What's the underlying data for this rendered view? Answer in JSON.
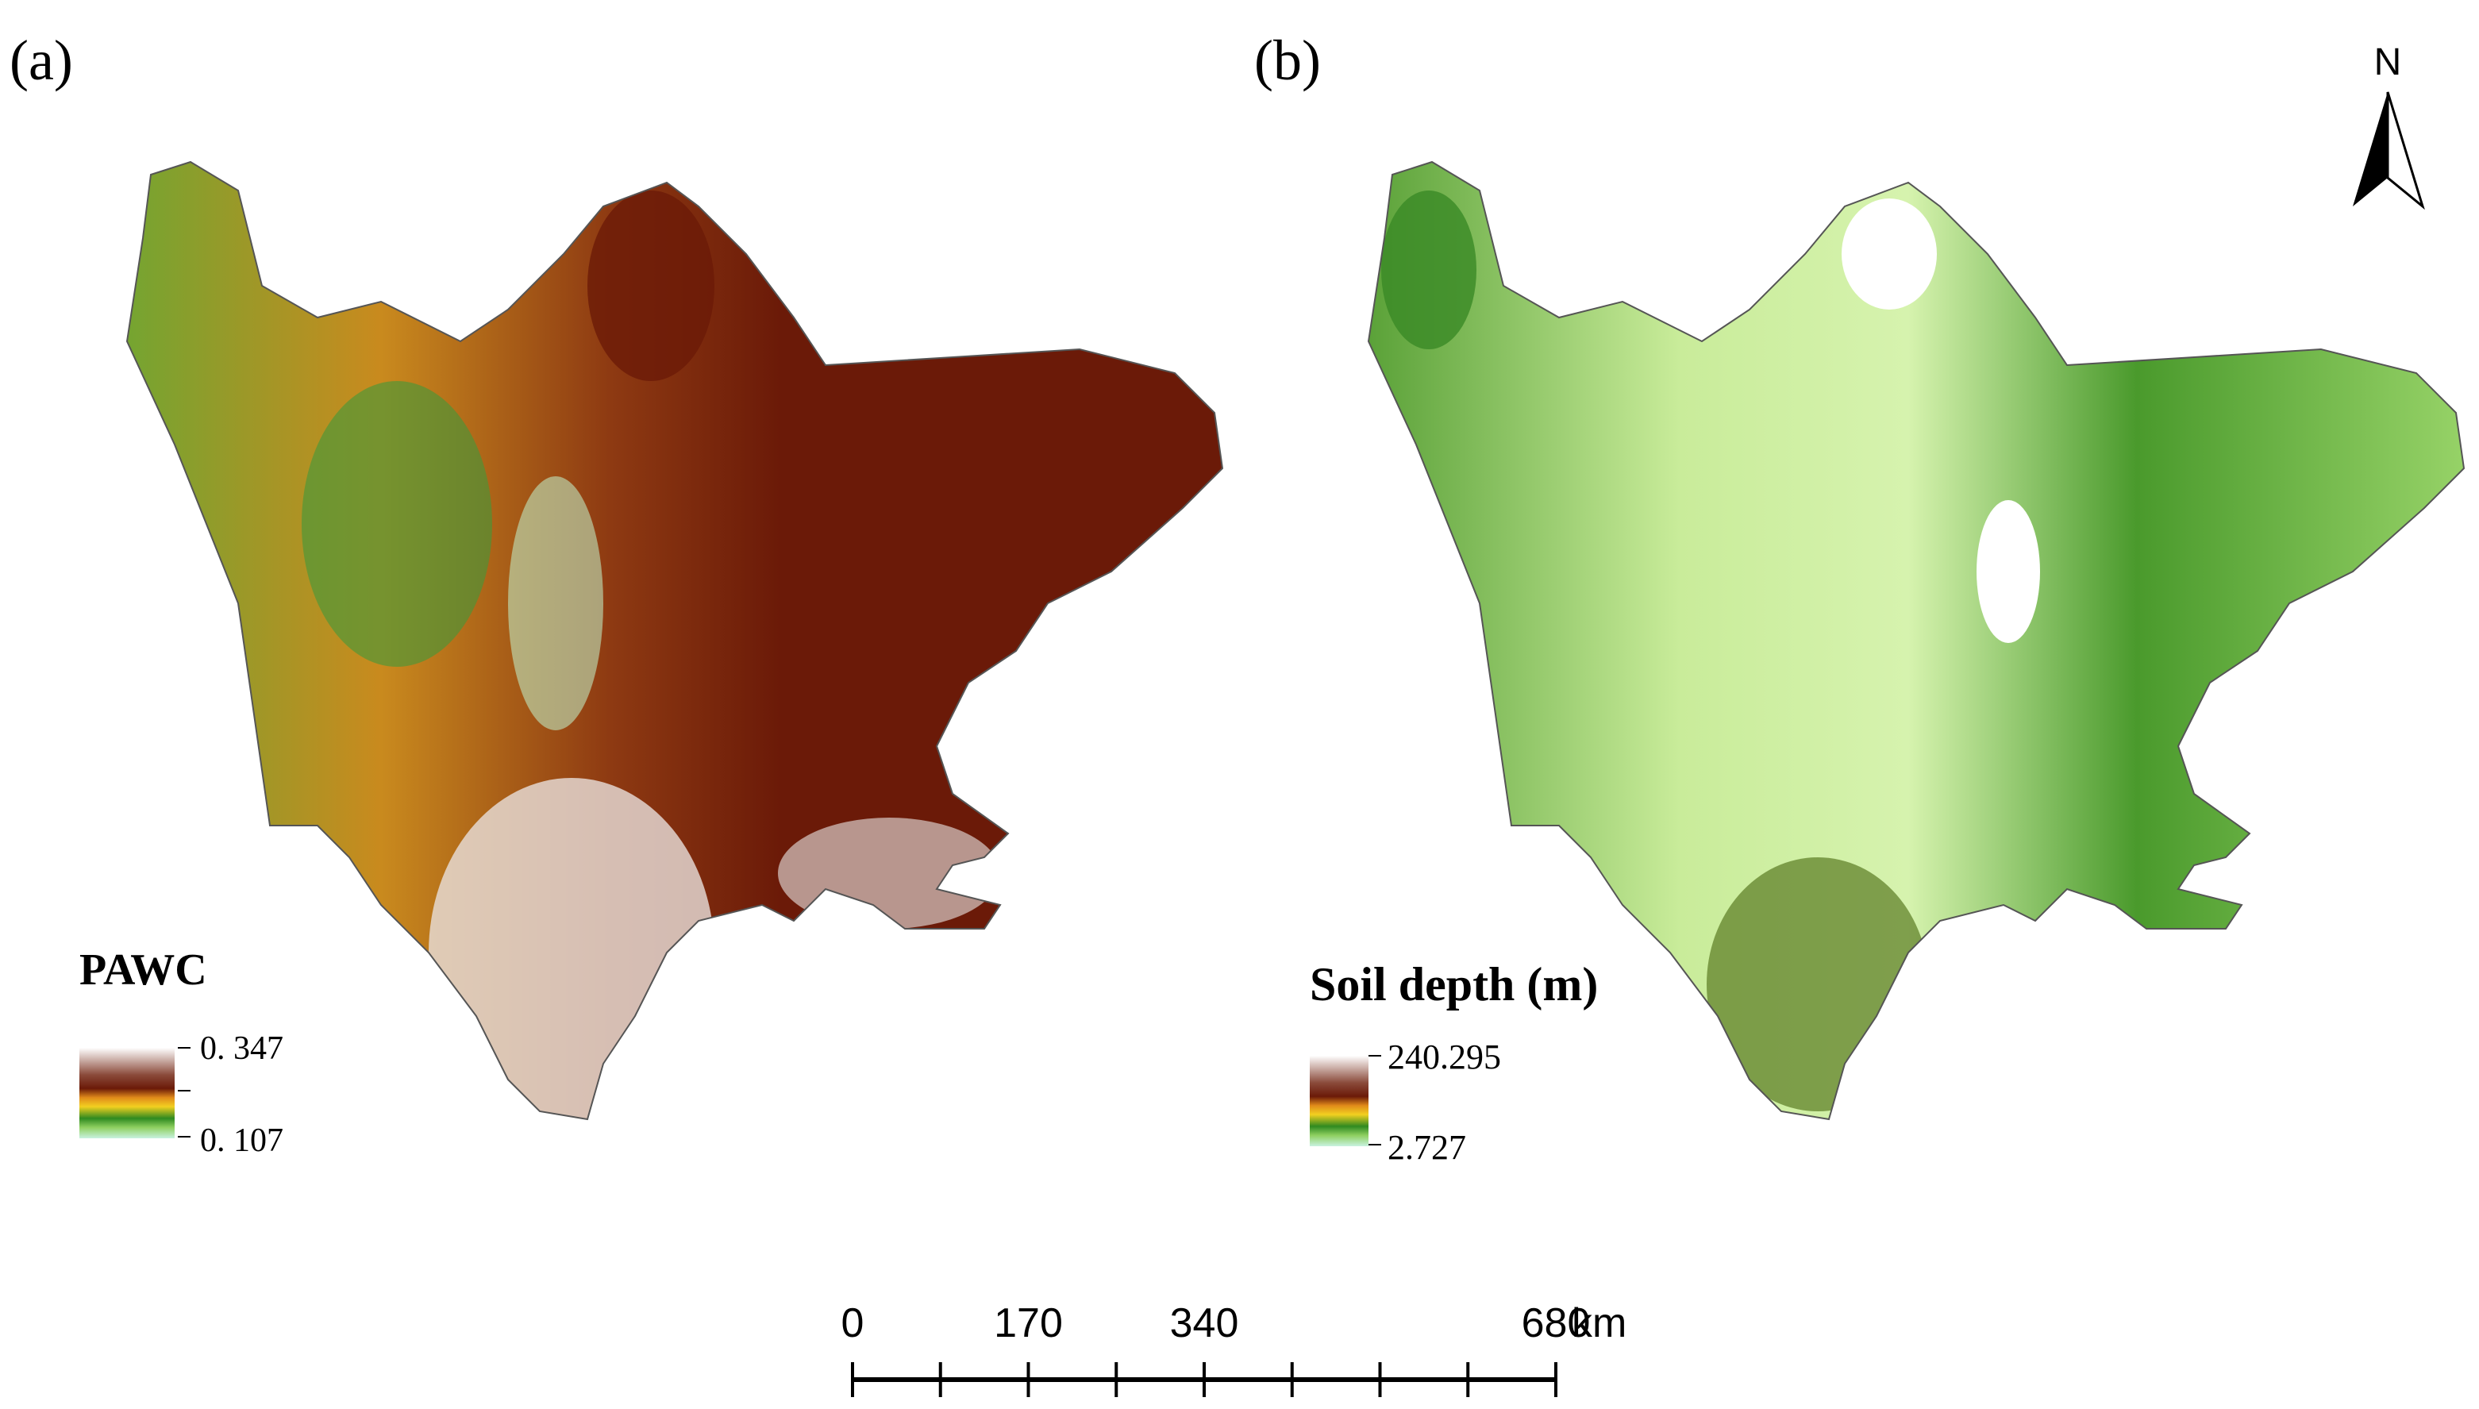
{
  "panels": [
    {
      "label": "(a)",
      "legend": {
        "title": "PAWC",
        "max": "0. 347",
        "min": "0. 107"
      }
    },
    {
      "label": "(b)",
      "legend": {
        "title": "Soil depth (m)",
        "max": "240.295",
        "min": "2.727"
      }
    }
  ],
  "north": "N",
  "scale_bar": {
    "ticks": [
      0,
      170,
      340,
      680
    ],
    "unit": "km"
  }
}
